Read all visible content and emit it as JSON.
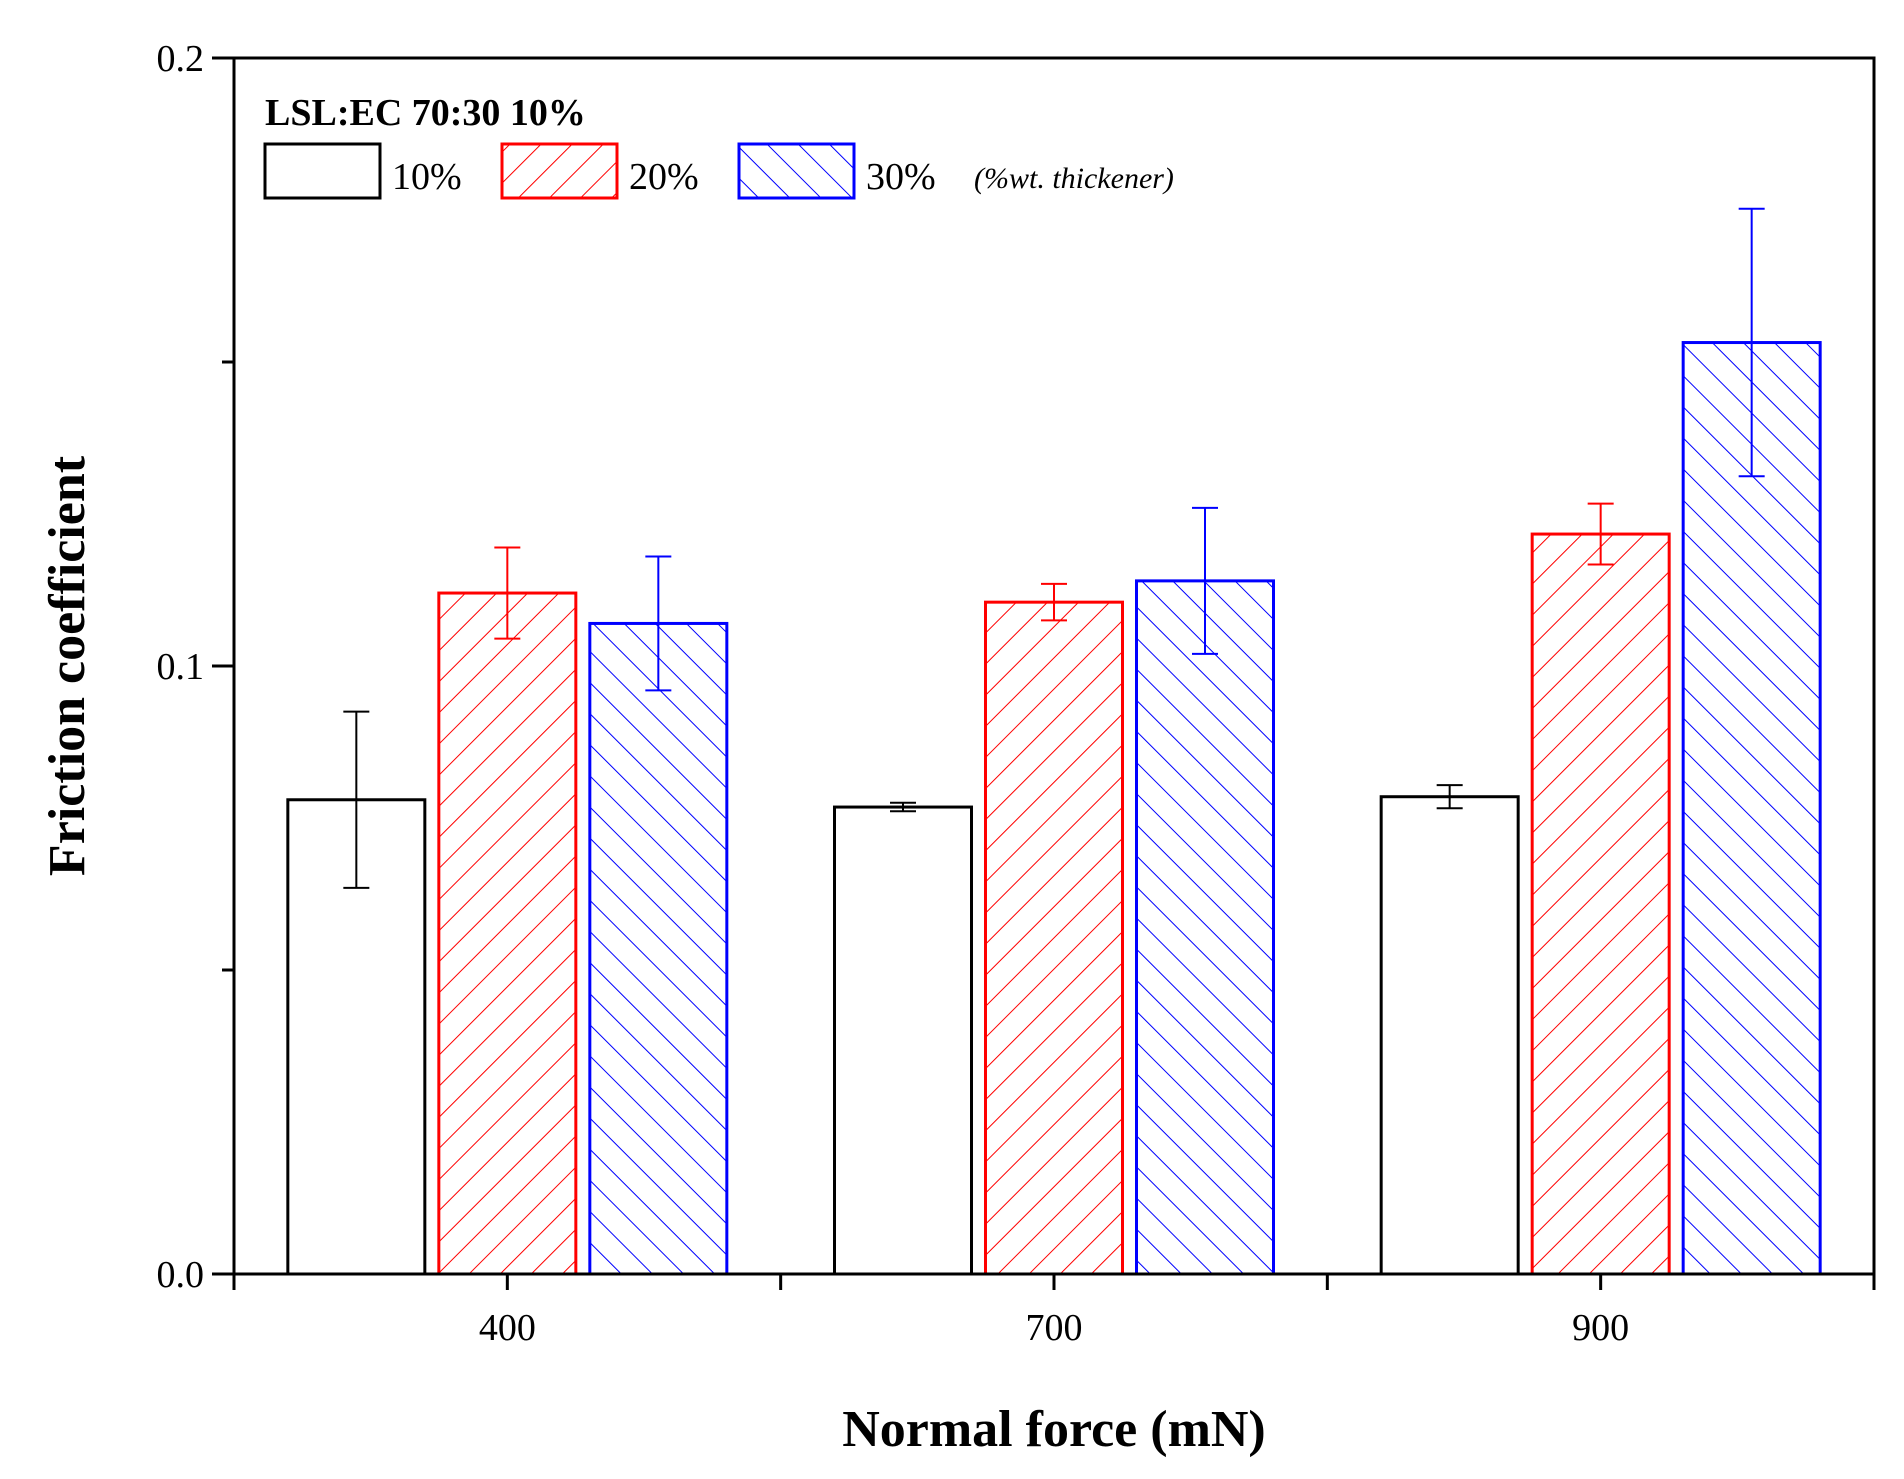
{
  "chart_data": {
    "type": "bar",
    "title": "LSL:EC 70:30 10%",
    "xlabel": "Normal force (mN)",
    "ylabel": "Friction coefficient",
    "categories": [
      "400",
      "700",
      "900"
    ],
    "ylim": [
      0.0,
      0.2
    ],
    "yticks": [
      0.0,
      0.1,
      0.2
    ],
    "ytick_labels": [
      "0.0",
      "0.1",
      "0.2"
    ],
    "y_minor_ticks": [
      0.05,
      0.15
    ],
    "grid": false,
    "legend_position": "top-left",
    "legend_note": "(%wt. thickener)",
    "series": [
      {
        "name": "10%",
        "color": "#000000",
        "pattern": "none",
        "values": [
          0.078,
          0.0768,
          0.0785
        ],
        "errors": [
          0.0145,
          0.0007,
          0.0019
        ]
      },
      {
        "name": "20%",
        "color": "#ff0000",
        "pattern": "forward-hatch",
        "values": [
          0.112,
          0.1105,
          0.1217
        ],
        "errors": [
          0.0075,
          0.003,
          0.005
        ]
      },
      {
        "name": "30%",
        "color": "#0000ff",
        "pattern": "back-hatch",
        "values": [
          0.107,
          0.114,
          0.1532
        ],
        "errors": [
          0.011,
          0.012,
          0.022
        ]
      }
    ]
  }
}
